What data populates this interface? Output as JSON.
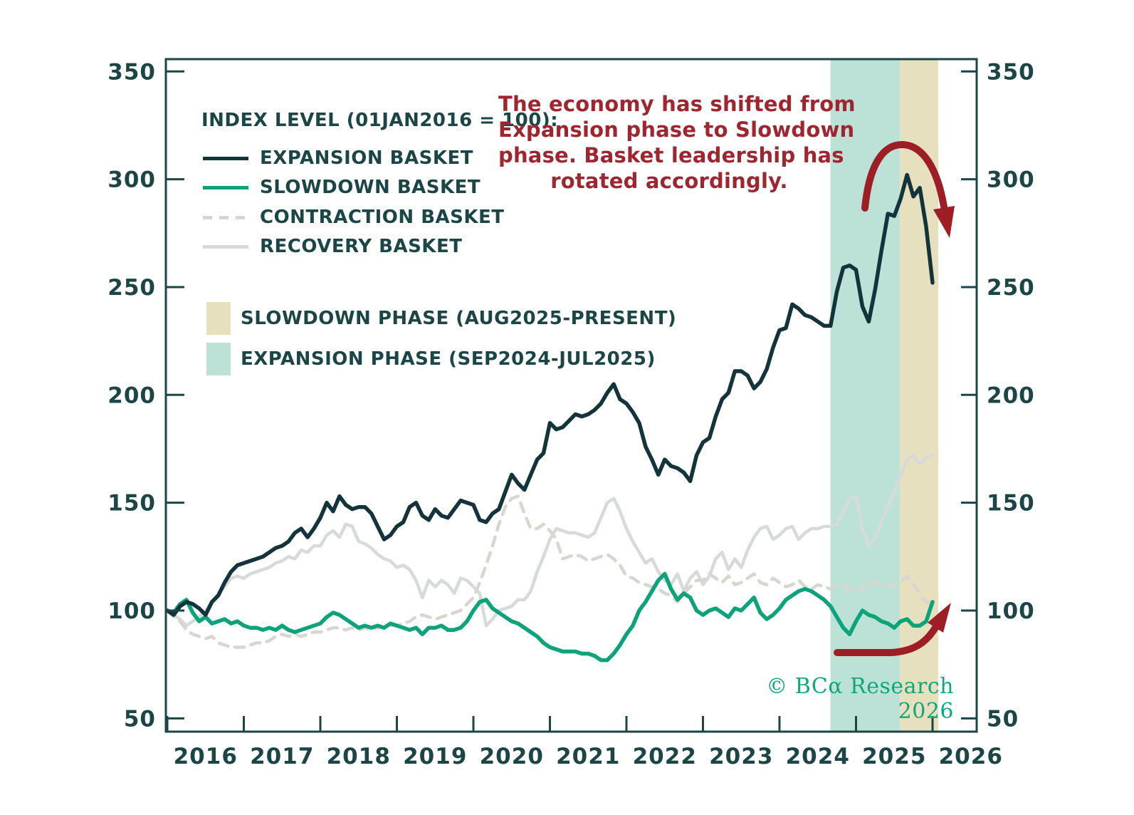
{
  "figure": {
    "background": "#ffffff",
    "text_color": "#1c4646",
    "annotation": {
      "color": "#9f2630",
      "lines": [
        "The economy has shifted from",
        "Expansion phase to Slowdown",
        "phase. Basket leadership has",
        "rotated accordingly."
      ]
    },
    "watermark": {
      "text": "© BCα Research 2026",
      "color": "#0fa87d"
    },
    "arrows": {
      "color": "#9e1e26"
    }
  },
  "legend": {
    "title": "INDEX LEVEL (01JAN2016 = 100):"
  },
  "chart_data": {
    "type": "line",
    "x_unit": "month",
    "x_start": "2016-01",
    "points": 121,
    "x_tick_years": [
      "2016",
      "2017",
      "2018",
      "2019",
      "2020",
      "2021",
      "2022",
      "2023",
      "2024",
      "2025",
      "2026"
    ],
    "ylim": [
      50,
      350
    ],
    "y_ticks": [
      50,
      100,
      150,
      200,
      250,
      300,
      350
    ],
    "grid": false,
    "legend_position": "upper-left",
    "bands": [
      {
        "label": "EXPANSION PHASE (SEP2024-JUL2025)",
        "color": "#bce2d8",
        "from_index": 104,
        "to_index": 114.9
      },
      {
        "label": "SLOWDOWN PHASE (AUG2025-PRESENT)",
        "color": "#e7e0bf",
        "from_index": 114.9,
        "to_index": 120.9
      }
    ],
    "series": [
      {
        "name": "EXPANSION BASKET",
        "color": "#14343c",
        "dash": false,
        "width": 5.5,
        "values": [
          100,
          98,
          102,
          104,
          103,
          101,
          98,
          104,
          107,
          113,
          118,
          121,
          122,
          123,
          124,
          125,
          127,
          129,
          130,
          132,
          136,
          138,
          134,
          138,
          143,
          150,
          146,
          153,
          149,
          147,
          148,
          148,
          145,
          139,
          133,
          135,
          139,
          141,
          148,
          150,
          144,
          142,
          147,
          144,
          143,
          147,
          151,
          150,
          149,
          142,
          141,
          145,
          147,
          155,
          163,
          159,
          156,
          163,
          170,
          173,
          187,
          184,
          185,
          188,
          191,
          190,
          191,
          193,
          196,
          201,
          205,
          198,
          196,
          192,
          187,
          176,
          170,
          163,
          170,
          167,
          166,
          164,
          160,
          172,
          178,
          180,
          190,
          198,
          201,
          211,
          211,
          209,
          203,
          206,
          212,
          222,
          230,
          231,
          242,
          240,
          237,
          236,
          234,
          232,
          232,
          248,
          259,
          260,
          258,
          241,
          234,
          249,
          267,
          284,
          283,
          291,
          302,
          292,
          296,
          278,
          252
        ]
      },
      {
        "name": "SLOWDOWN BASKET",
        "color": "#0aa37a",
        "dash": false,
        "width": 5.5,
        "values": [
          100,
          99,
          103,
          105,
          99,
          95,
          97,
          94,
          95,
          96,
          94,
          95,
          93,
          92,
          92,
          91,
          92,
          91,
          93,
          91,
          90,
          91,
          92,
          93,
          94,
          97,
          99,
          98,
          96,
          94,
          92,
          93,
          92,
          93,
          92,
          94,
          93,
          92,
          91,
          92,
          89,
          92,
          92,
          93,
          91,
          91,
          92,
          95,
          100,
          104,
          105,
          101,
          99,
          97,
          95,
          94,
          92,
          90,
          88,
          85,
          83,
          82,
          81,
          81,
          81,
          80,
          80,
          79,
          77,
          77,
          80,
          84,
          89,
          93,
          100,
          104,
          109,
          114,
          117,
          110,
          105,
          108,
          106,
          100,
          98,
          100,
          101,
          99,
          97,
          101,
          100,
          103,
          106,
          99,
          96,
          98,
          101,
          105,
          107,
          109,
          110,
          109,
          107,
          105,
          102,
          97,
          92,
          89,
          95,
          100,
          98,
          97,
          95,
          94,
          92,
          95,
          96,
          93,
          93,
          95,
          104
        ]
      },
      {
        "name": "CONTRACTION BASKET",
        "color": "#d9d6d0",
        "dash": true,
        "width": 4.5,
        "values": [
          100,
          97,
          95,
          91,
          89,
          88,
          87,
          88,
          85,
          84,
          83,
          83,
          83,
          84,
          85,
          85,
          86,
          88,
          89,
          88,
          89,
          88,
          89,
          90,
          90,
          91,
          92,
          92,
          91,
          92,
          91,
          92,
          91,
          92,
          92,
          93,
          93,
          94,
          95,
          97,
          98,
          97,
          96,
          97,
          98,
          99,
          100,
          103,
          106,
          113,
          121,
          130,
          140,
          148,
          152,
          153,
          145,
          138,
          138,
          140,
          137,
          133,
          124,
          125,
          126,
          125,
          123,
          124,
          125,
          126,
          124,
          121,
          116,
          115,
          113,
          112,
          111,
          110,
          108,
          107,
          104,
          108,
          111,
          114,
          114,
          117,
          115,
          113,
          116,
          112,
          113,
          115,
          117,
          113,
          112,
          115,
          113,
          111,
          112,
          114,
          111,
          110,
          112,
          111,
          110,
          112,
          111,
          110,
          109,
          111,
          112,
          113,
          112,
          111,
          112,
          113,
          116,
          112,
          108,
          104,
          103
        ]
      },
      {
        "name": "RECOVERY BASKET",
        "color": "#d6dbd9",
        "dash": false,
        "width": 4.5,
        "values": [
          100,
          98,
          96,
          93,
          95,
          97,
          100,
          104,
          108,
          111,
          115,
          116,
          115,
          117,
          118,
          119,
          120,
          122,
          123,
          125,
          124,
          128,
          127,
          130,
          130,
          135,
          137,
          134,
          140,
          139,
          132,
          131,
          129,
          126,
          124,
          123,
          120,
          121,
          119,
          114,
          106,
          114,
          111,
          114,
          112,
          108,
          115,
          114,
          111,
          108,
          93,
          96,
          100,
          101,
          102,
          105,
          105,
          109,
          118,
          125,
          133,
          138,
          137,
          136,
          136,
          135,
          134,
          136,
          143,
          150,
          152,
          146,
          138,
          132,
          127,
          122,
          124,
          118,
          114,
          112,
          117,
          109,
          115,
          118,
          112,
          116,
          124,
          127,
          119,
          124,
          120,
          128,
          134,
          138,
          139,
          133,
          135,
          138,
          139,
          133,
          136,
          138,
          138,
          139,
          139,
          140,
          146,
          152,
          153,
          138,
          130,
          134,
          141,
          149,
          155,
          162,
          170,
          172,
          168,
          171,
          172
        ]
      }
    ]
  }
}
